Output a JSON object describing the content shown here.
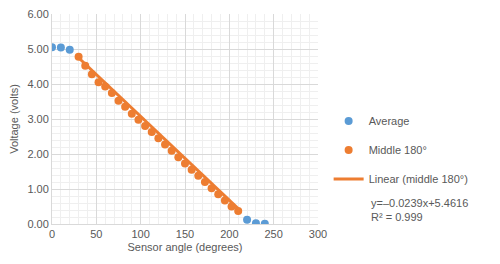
{
  "chart_data": {
    "type": "scatter",
    "x_label": "Sensor angle (degrees)",
    "y_label": "Voltage (volts)",
    "xlim": [
      0,
      300
    ],
    "xticks": [
      0,
      50,
      100,
      150,
      200,
      250,
      300
    ],
    "ylim": [
      0,
      6
    ],
    "yticks": [
      {
        "value": 0,
        "label": "0.00"
      },
      {
        "value": 1,
        "label": "1.00"
      },
      {
        "value": 2,
        "label": "2.00"
      },
      {
        "value": 3,
        "label": "3.00"
      },
      {
        "value": 4,
        "label": "4.00"
      },
      {
        "value": 5,
        "label": "5.00"
      },
      {
        "value": 6,
        "label": "6.00"
      }
    ],
    "grid": true,
    "legend": "right",
    "series": [
      {
        "name": "Average",
        "type": "scatter",
        "marker": "circle",
        "color": "#5B9BD5",
        "x": [
          0,
          10,
          20,
          220,
          230,
          240
        ],
        "values": [
          5.05,
          5.04,
          4.98,
          0.12,
          0.02,
          0.01
        ]
      },
      {
        "name": "Middle 180°",
        "type": "scatter",
        "marker": "circle",
        "color": "#ED7D31",
        "x": [
          30,
          37.5,
          45,
          52.5,
          60,
          67.5,
          75,
          82.5,
          90,
          97.5,
          105,
          112.5,
          120,
          127.5,
          135,
          142.5,
          150,
          157.5,
          165,
          172.5,
          180,
          187.5,
          195,
          202.5,
          210
        ],
        "values": [
          4.78,
          4.52,
          4.28,
          4.05,
          3.93,
          3.74,
          3.52,
          3.35,
          3.15,
          2.98,
          2.8,
          2.63,
          2.45,
          2.27,
          2.09,
          1.91,
          1.73,
          1.55,
          1.38,
          1.2,
          1.02,
          0.85,
          0.67,
          0.5,
          0.37
        ]
      },
      {
        "name": "Linear (middle 180°)",
        "type": "line",
        "line_style": "solid",
        "color": "#ED7D31",
        "x": [
          30,
          210
        ],
        "values": [
          4.75,
          0.44
        ]
      }
    ],
    "annotations": [
      "y=–0.0239x+5.4616",
      "R² = 0.999"
    ]
  }
}
